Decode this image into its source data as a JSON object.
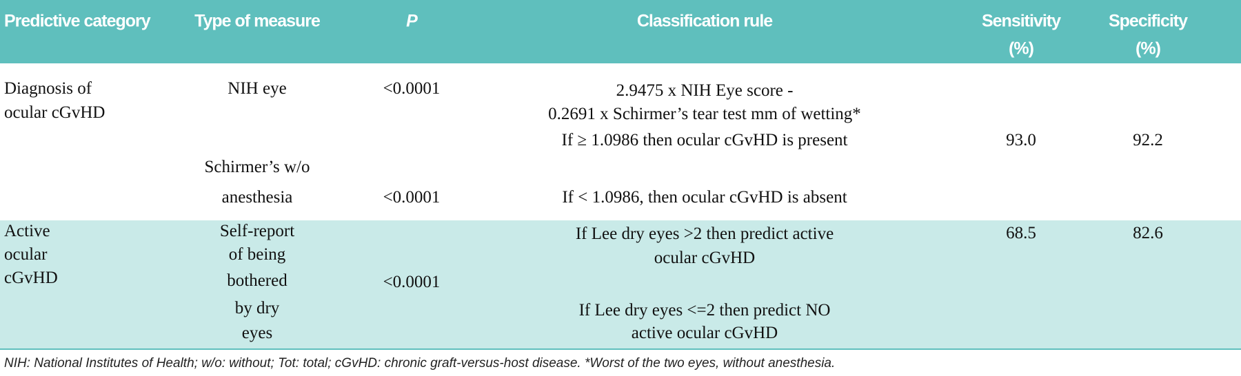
{
  "table": {
    "header": [
      [
        "Predictive category"
      ],
      [
        "Type of measure"
      ],
      [
        "P"
      ],
      [
        "Classification rule"
      ],
      [
        "Sensitivity",
        "(%)"
      ],
      [
        "Specificity",
        "(%)"
      ]
    ],
    "rows": [
      [
        [
          "Diagnosis of",
          "ocular cGvHD"
        ],
        [
          "NIH eye",
          "Schirmer’s w/o",
          "anesthesia"
        ],
        [
          "<0.0001",
          "<0.0001"
        ],
        [
          "2.9475 x NIH Eye score -",
          "0.2691 x Schirmer’s tear test mm of wetting*",
          "If ≥ 1.0986 then ocular cGvHD is present",
          "If < 1.0986, then ocular cGvHD is absent"
        ],
        [
          "93.0"
        ],
        [
          "92.2"
        ]
      ],
      [
        [
          "Active",
          "ocular",
          "cGvHD"
        ],
        [
          "Self-report",
          "of being",
          "bothered",
          "by dry",
          "eyes"
        ],
        [
          "<0.0001"
        ],
        [
          "If Lee dry eyes >2 then predict active",
          "ocular cGvHD",
          "If Lee dry eyes <=2 then predict NO",
          "active ocular cGvHD"
        ],
        [
          "68.5"
        ],
        [
          "82.6"
        ]
      ]
    ],
    "footnote": "NIH: National Institutes of Health; w/o: without; Tot: total; cGvHD: chronic graft-versus-host disease. *Worst of the two eyes, without anesthesia."
  }
}
